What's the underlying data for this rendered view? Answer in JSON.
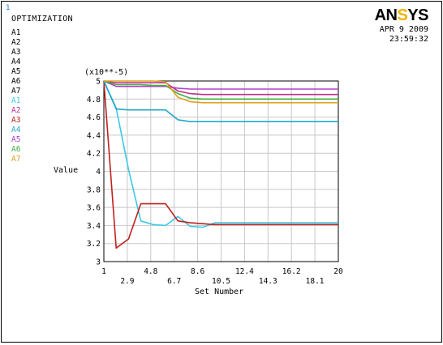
{
  "window_number": "1",
  "title": "OPTIMIZATION",
  "legend": [
    {
      "label": "A1",
      "color": "#000000"
    },
    {
      "label": "A2",
      "color": "#000000"
    },
    {
      "label": "A3",
      "color": "#000000"
    },
    {
      "label": "A4",
      "color": "#000000"
    },
    {
      "label": "A5",
      "color": "#000000"
    },
    {
      "label": "A6",
      "color": "#000000"
    },
    {
      "label": "A7",
      "color": "#000000"
    },
    {
      "label": "A1",
      "color": "#3cc8e6"
    },
    {
      "label": "A2",
      "color": "#c03090"
    },
    {
      "label": "A3",
      "color": "#c02020"
    },
    {
      "label": "A4",
      "color": "#20a8c8"
    },
    {
      "label": "A5",
      "color": "#b040c8"
    },
    {
      "label": "A6",
      "color": "#40b040"
    },
    {
      "label": "A7",
      "color": "#e0a020"
    }
  ],
  "logo": {
    "part1": "AN",
    "part2": "S",
    "part3": "YS"
  },
  "date": "APR  9 2009",
  "time": "23:59:32",
  "y_multiplier": "(x10**-5)",
  "chart_data": {
    "type": "line",
    "title": "",
    "xlabel": "Set Number",
    "ylabel": "Value",
    "xlim": [
      1,
      20
    ],
    "ylim": [
      3,
      5
    ],
    "x_ticks_bottom": [
      "1",
      "4.8",
      "8.6",
      "12.4",
      "16.2",
      "20"
    ],
    "x_ticks_top": [
      "2.9",
      "6.7",
      "10.5",
      "14.3",
      "18.1"
    ],
    "y_ticks": [
      "3",
      "3.2",
      "3.4",
      "3.6",
      "3.8",
      "4",
      "4.2",
      "4.4",
      "4.6",
      "4.8",
      "5"
    ],
    "grid": true,
    "x": [
      1,
      2,
      3,
      4,
      5,
      6,
      7,
      8,
      9,
      10,
      11,
      12,
      13,
      14,
      15,
      16,
      17,
      18,
      19,
      20
    ],
    "series": [
      {
        "color": "#3cc8e6",
        "values": [
          5.0,
          4.7,
          4.02,
          3.45,
          3.41,
          3.4,
          3.5,
          3.39,
          3.38,
          3.43,
          3.43,
          3.43,
          3.43,
          3.43,
          3.43,
          3.43,
          3.43,
          3.43,
          3.43,
          3.43
        ]
      },
      {
        "color": "#c02020",
        "values": [
          5.0,
          3.15,
          3.25,
          3.64,
          3.64,
          3.64,
          3.45,
          3.43,
          3.42,
          3.41,
          3.41,
          3.41,
          3.41,
          3.41,
          3.41,
          3.41,
          3.41,
          3.41,
          3.41,
          3.41
        ]
      },
      {
        "color": "#20a8c8",
        "values": [
          5.0,
          4.69,
          4.68,
          4.68,
          4.68,
          4.68,
          4.57,
          4.55,
          4.55,
          4.55,
          4.55,
          4.55,
          4.55,
          4.55,
          4.55,
          4.55,
          4.55,
          4.55,
          4.55,
          4.55
        ]
      },
      {
        "color": "#b040c8",
        "values": [
          5.0,
          4.94,
          4.94,
          4.94,
          4.94,
          4.94,
          4.92,
          4.91,
          4.91,
          4.91,
          4.91,
          4.91,
          4.91,
          4.91,
          4.91,
          4.91,
          4.91,
          4.91,
          4.91,
          4.91
        ]
      },
      {
        "color": "#c03090",
        "values": [
          5.0,
          4.98,
          4.98,
          4.98,
          4.98,
          4.98,
          4.89,
          4.86,
          4.85,
          4.85,
          4.85,
          4.85,
          4.85,
          4.85,
          4.85,
          4.85,
          4.85,
          4.85,
          4.85,
          4.85
        ]
      },
      {
        "color": "#40b040",
        "values": [
          5.0,
          4.96,
          4.96,
          4.96,
          4.95,
          4.95,
          4.86,
          4.81,
          4.8,
          4.8,
          4.8,
          4.8,
          4.8,
          4.8,
          4.8,
          4.8,
          4.8,
          4.8,
          4.8,
          4.8
        ]
      },
      {
        "color": "#e0a020",
        "values": [
          5.0,
          5.0,
          5.0,
          5.0,
          5.0,
          4.99,
          4.82,
          4.77,
          4.76,
          4.76,
          4.76,
          4.76,
          4.76,
          4.76,
          4.76,
          4.76,
          4.76,
          4.76,
          4.76,
          4.76
        ]
      }
    ]
  }
}
